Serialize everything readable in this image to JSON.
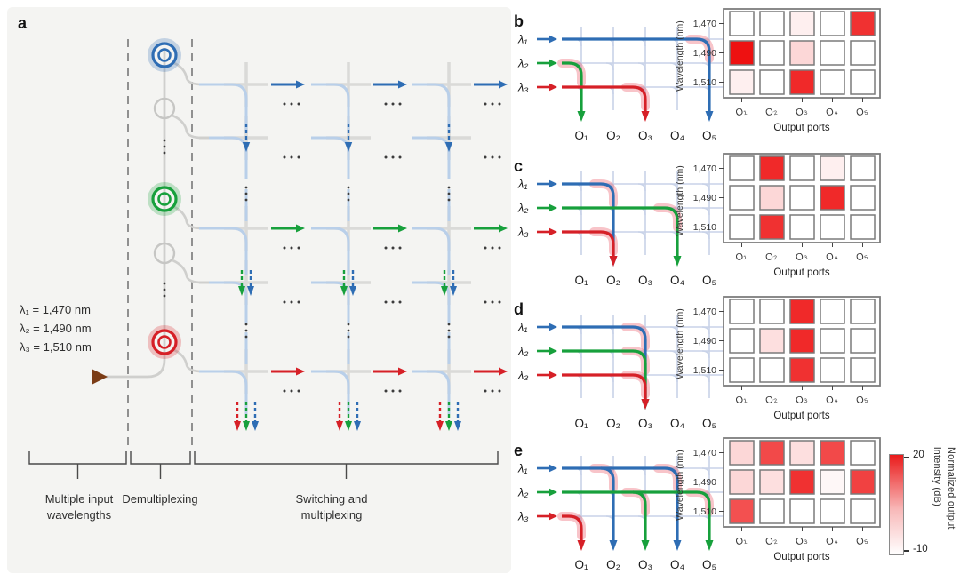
{
  "figure_panels": {
    "a": {
      "label": "a",
      "wavelength_legend": [
        "λ₁ = 1,470 nm",
        "λ₂ = 1,490 nm",
        "λ₃ = 1,510 nm"
      ],
      "section_labels": [
        "Multiple input wavelengths",
        "Demultiplexing",
        "Switching and multiplexing"
      ],
      "wavelength_colors": [
        "#2e6db4",
        "#17a03c",
        "#d62027"
      ],
      "icon_names": [
        "ring-resonator-icon",
        "waveguide-crossing-icon",
        "multiwavelength-input-arrow-icon"
      ]
    },
    "routing_common": {
      "input_labels": [
        "λ₁",
        "λ₂",
        "λ₃"
      ],
      "output_labels": [
        "O₁",
        "O₂",
        "O₃",
        "O₄",
        "O₅"
      ],
      "grid_color": "#c8d2e8",
      "highlight_color": "rgba(235,75,90,0.33)"
    },
    "panels": [
      {
        "label": "b",
        "routes": [
          {
            "name": "λ₁",
            "color": "#2e6db4",
            "ports": [
              5
            ]
          },
          {
            "name": "λ₂",
            "color": "#17a03c",
            "ports": [
              1
            ]
          },
          {
            "name": "λ₃",
            "color": "#d62027",
            "ports": [
              3
            ]
          }
        ]
      },
      {
        "label": "c",
        "routes": [
          {
            "name": "λ₁",
            "color": "#2e6db4",
            "ports": [
              2
            ]
          },
          {
            "name": "λ₂",
            "color": "#17a03c",
            "ports": [
              4
            ]
          },
          {
            "name": "λ₃",
            "color": "#d62027",
            "ports": [
              2
            ]
          }
        ]
      },
      {
        "label": "d",
        "routes": [
          {
            "name": "λ₁",
            "color": "#2e6db4",
            "ports": [
              3
            ]
          },
          {
            "name": "λ₂",
            "color": "#17a03c",
            "ports": [
              3
            ]
          },
          {
            "name": "λ₃",
            "color": "#d62027",
            "ports": [
              3
            ]
          }
        ]
      },
      {
        "label": "e",
        "routes": [
          {
            "name": "λ₁",
            "color": "#2e6db4",
            "ports": [
              2,
              4
            ]
          },
          {
            "name": "λ₂",
            "color": "#17a03c",
            "ports": [
              3,
              5
            ]
          },
          {
            "name": "λ₃",
            "color": "#d62027",
            "ports": [
              1
            ]
          }
        ]
      }
    ],
    "heatmap_axis": {
      "y_label": "Wavelength (nm)",
      "x_label": "Output ports",
      "row_labels": [
        "1,470",
        "1,490",
        "1,510"
      ],
      "col_labels": [
        "O₁",
        "O₂",
        "O₃",
        "O₄",
        "O₅"
      ]
    },
    "colorbar": {
      "max_label": "20",
      "min_label": "-10",
      "label": "Normalized output intensity (dB)",
      "top_color": "#ea1b1b",
      "bottom_color": "#ffffff"
    }
  },
  "chart_data": [
    {
      "type": "heatmap",
      "panel": "b",
      "x": [
        "O1",
        "O2",
        "O3",
        "O4",
        "O5"
      ],
      "y": [
        "1,470",
        "1,490",
        "1,510"
      ],
      "xlabel": "Output ports",
      "ylabel": "Wavelength (nm)",
      "values_db": [
        [
          -10,
          -10,
          -8,
          -10,
          16
        ],
        [
          20,
          -10,
          -5,
          -10,
          -10
        ],
        [
          -8,
          -10,
          17,
          -10,
          -10
        ]
      ],
      "scale": {
        "min": -10,
        "max": 20,
        "units": "dB",
        "colormap": "white-to-red"
      }
    },
    {
      "type": "heatmap",
      "panel": "c",
      "x": [
        "O1",
        "O2",
        "O3",
        "O4",
        "O5"
      ],
      "y": [
        "1,470",
        "1,490",
        "1,510"
      ],
      "xlabel": "Output ports",
      "ylabel": "Wavelength (nm)",
      "values_db": [
        [
          -10,
          17,
          -10,
          -8,
          -10
        ],
        [
          -10,
          -5,
          -10,
          17,
          -10
        ],
        [
          -10,
          16,
          -10,
          -10,
          -10
        ]
      ],
      "scale": {
        "min": -10,
        "max": 20,
        "units": "dB",
        "colormap": "white-to-red"
      }
    },
    {
      "type": "heatmap",
      "panel": "d",
      "x": [
        "O1",
        "O2",
        "O3",
        "O4",
        "O5"
      ],
      "y": [
        "1,470",
        "1,490",
        "1,510"
      ],
      "xlabel": "Output ports",
      "ylabel": "Wavelength (nm)",
      "values_db": [
        [
          -10,
          -10,
          17,
          -10,
          -10
        ],
        [
          -10,
          -6,
          17,
          -10,
          -10
        ],
        [
          -10,
          -10,
          16,
          -10,
          -10
        ]
      ],
      "scale": {
        "min": -10,
        "max": 20,
        "units": "dB",
        "colormap": "white-to-red"
      }
    },
    {
      "type": "heatmap",
      "panel": "e",
      "x": [
        "O1",
        "O2",
        "O3",
        "O4",
        "O5"
      ],
      "y": [
        "1,470",
        "1,490",
        "1,510"
      ],
      "xlabel": "Output ports",
      "ylabel": "Wavelength (nm)",
      "values_db": [
        [
          -5,
          13,
          -6,
          13,
          -10
        ],
        [
          -5,
          -6,
          16,
          -9,
          14
        ],
        [
          12,
          -10,
          -10,
          -10,
          -10
        ]
      ],
      "scale": {
        "min": -10,
        "max": 20,
        "units": "dB",
        "colormap": "white-to-red"
      }
    }
  ]
}
